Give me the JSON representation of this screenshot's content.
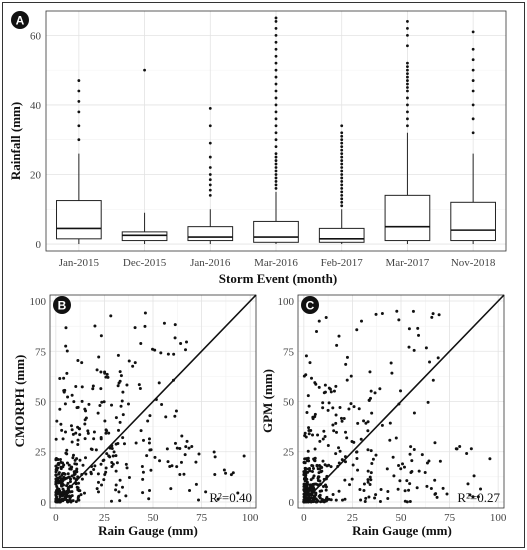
{
  "chart_data": [
    {
      "type": "box",
      "panel_label": "A",
      "xlabel": "Storm Event (month)",
      "ylabel": "Rainfall (mm)",
      "ylim": [
        -2,
        67
      ],
      "yticks": [
        0,
        20,
        40,
        60
      ],
      "categories": [
        "Jan-2015",
        "Dec-2015",
        "Jan-2016",
        "Mar-2016",
        "Feb-2017",
        "Mar-2017",
        "Nov-2018"
      ],
      "boxes": [
        {
          "q1": 1.5,
          "median": 4.5,
          "q3": 12.5,
          "whisker_low": 0,
          "whisker_high": 26,
          "outliers": [
            30,
            34,
            38,
            41,
            44,
            47
          ]
        },
        {
          "q1": 1.0,
          "median": 2.5,
          "q3": 3.5,
          "whisker_low": 0,
          "whisker_high": 9,
          "outliers": [
            50
          ]
        },
        {
          "q1": 1.0,
          "median": 2.0,
          "q3": 5.0,
          "whisker_low": 0,
          "whisker_high": 10,
          "outliers": [
            14,
            15.5,
            17,
            18.5,
            20,
            22,
            25,
            29,
            34,
            39
          ]
        },
        {
          "q1": 0.5,
          "median": 2.0,
          "q3": 6.5,
          "whisker_low": 0,
          "whisker_high": 15,
          "outliers": [
            16,
            17,
            18,
            19,
            20,
            21,
            22,
            23,
            24,
            25,
            26,
            28,
            30,
            32,
            34,
            36,
            38,
            40,
            42,
            44,
            46,
            48,
            50,
            52,
            54,
            56,
            58,
            60,
            62,
            64,
            65
          ]
        },
        {
          "q1": 0.5,
          "median": 1.5,
          "q3": 4.5,
          "whisker_low": 0,
          "whisker_high": 10,
          "outliers": [
            11,
            12,
            13,
            14,
            15,
            16,
            17,
            18,
            19,
            20,
            21,
            22,
            23,
            24,
            25,
            26,
            27,
            28,
            29,
            30,
            31,
            32,
            34
          ]
        },
        {
          "q1": 1.0,
          "median": 5.0,
          "q3": 14.0,
          "whisker_low": 0,
          "whisker_high": 32,
          "outliers": [
            34,
            36,
            38,
            40,
            42,
            44,
            45,
            46,
            47,
            48,
            49,
            50,
            51,
            52,
            57,
            60,
            62,
            64
          ]
        },
        {
          "q1": 1.0,
          "median": 4.0,
          "q3": 12.0,
          "whisker_low": 0,
          "whisker_high": 26,
          "outliers": [
            32,
            36,
            40,
            44,
            47,
            50,
            53,
            56,
            61
          ]
        }
      ]
    },
    {
      "type": "scatter",
      "panel_label": "B",
      "xlabel": "Rain Gauge (mm)",
      "ylabel": "CMORPH (mm)",
      "xlim": [
        -3,
        103
      ],
      "ylim": [
        -3,
        103
      ],
      "xticks": [
        0,
        25,
        50,
        75,
        100
      ],
      "yticks": [
        0,
        25,
        50,
        75,
        100
      ],
      "annotation": "R²=0.40",
      "reference_line": "1:1"
    },
    {
      "type": "scatter",
      "panel_label": "C",
      "xlabel": "Rain Gauge (mm)",
      "ylabel": "GPM (mm)",
      "xlim": [
        -3,
        103
      ],
      "ylim": [
        -3,
        103
      ],
      "xticks": [
        0,
        25,
        50,
        75,
        100
      ],
      "yticks": [
        0,
        25,
        50,
        75,
        100
      ],
      "annotation": "R²=0.27",
      "reference_line": "1:1"
    }
  ]
}
